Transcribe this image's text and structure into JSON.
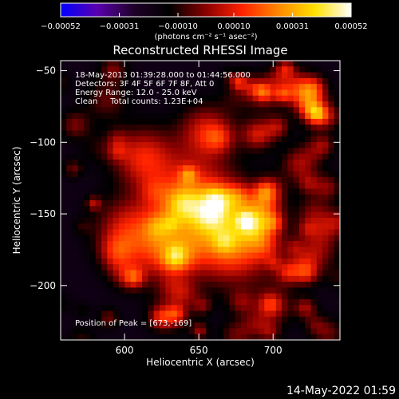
{
  "chart_data": {
    "type": "heatmap",
    "title": "Reconstructed RHESSI Image",
    "xlabel": "Heliocentric X (arcsec)",
    "ylabel": "Heliocentric Y (arcsec)",
    "xlim": [
      557,
      745
    ],
    "ylim": [
      -238,
      -43
    ],
    "x_ticks": [
      600,
      650,
      700
    ],
    "y_ticks": [
      -50,
      -100,
      -150,
      -200
    ],
    "x_tick_labels": [
      "600",
      "650",
      "700"
    ],
    "y_tick_labels": [
      "−50",
      "−100",
      "−150",
      "−200"
    ],
    "colorbar": {
      "range": [
        -0.00052,
        0.00052
      ],
      "ticks": [
        -0.00052,
        -0.00031,
        -0.0001,
        0.0001,
        0.00031,
        0.00052
      ],
      "tick_labels": [
        "−0.00052",
        "−0.00031",
        "−0.00010",
        "0.00010",
        "0.00031",
        "0.00052"
      ],
      "unit_label": "(photons cm⁻² s⁻¹ asec⁻²)",
      "colors": [
        "#0000ff",
        "#5a00b0",
        "#20002a",
        "#000000",
        "#8a0000",
        "#ff2200",
        "#ff8800",
        "#ffe000",
        "#ffffff"
      ]
    },
    "annotations": [
      "18-May-2013 01:39:28.000 to 01:44:56.000",
      "Detectors: 3F 4F 5F 6F 7F 8F, Att 0",
      "Energy Range: 12.0 - 25.0 keV",
      "Clean     Total counts: 1.23E+04"
    ],
    "peak_label": "Position of Peak = [673,-169]",
    "peak_position": [
      673,
      -169
    ],
    "grid": false
  },
  "footer": {
    "timestamp": "14-May-2022 01:59"
  }
}
